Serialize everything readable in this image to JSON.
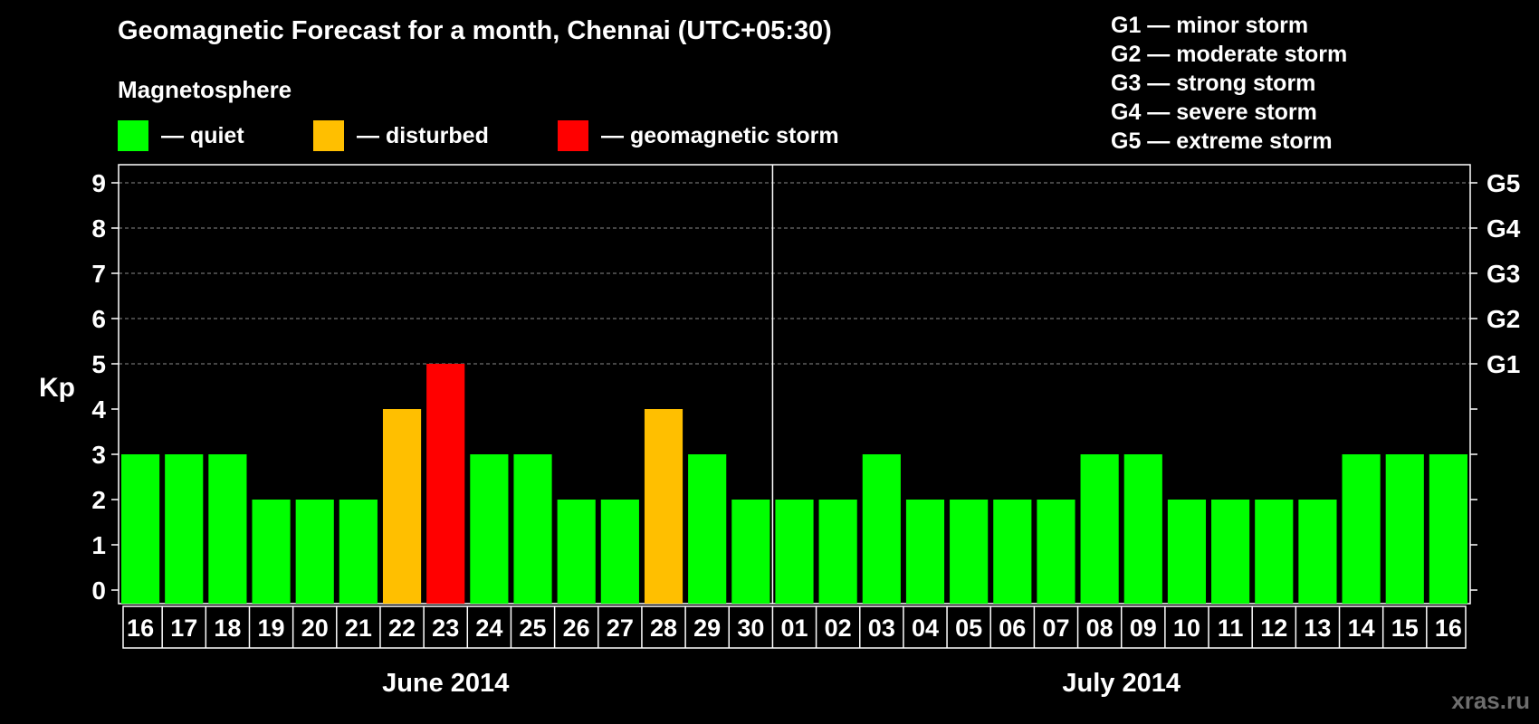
{
  "title": "Geomagnetic Forecast for a month, Chennai (UTC+05:30)",
  "legend": {
    "heading": "Magnetosphere",
    "items": [
      {
        "label": "— quiet",
        "color": "#00ff00"
      },
      {
        "label": "— disturbed",
        "color": "#ffbf00"
      },
      {
        "label": "— geomagnetic storm",
        "color": "#ff0000"
      }
    ]
  },
  "storm_scale": [
    "G1 — minor storm",
    "G2 — moderate storm",
    "G3 — strong storm",
    "G4 — severe storm",
    "G5 — extreme storm"
  ],
  "watermark": "xras.ru",
  "chart_data": {
    "type": "bar",
    "title": "Geomagnetic Forecast for a month, Chennai (UTC+05:30)",
    "ylabel": "Kp",
    "xlabel": "",
    "ylim": [
      0,
      9
    ],
    "yticks": [
      "0",
      "1",
      "2",
      "3",
      "4",
      "5",
      "6",
      "7",
      "8",
      "9"
    ],
    "right_axis_labels": [
      {
        "kp": 5,
        "label": "G1"
      },
      {
        "kp": 6,
        "label": "G2"
      },
      {
        "kp": 7,
        "label": "G3"
      },
      {
        "kp": 8,
        "label": "G4"
      },
      {
        "kp": 9,
        "label": "G5"
      }
    ],
    "gridlines_at": [
      5,
      6,
      7,
      8,
      9
    ],
    "categories": [
      "16",
      "17",
      "18",
      "19",
      "20",
      "21",
      "22",
      "23",
      "24",
      "25",
      "26",
      "27",
      "28",
      "29",
      "30",
      "01",
      "02",
      "03",
      "04",
      "05",
      "06",
      "07",
      "08",
      "09",
      "10",
      "11",
      "12",
      "13",
      "14",
      "15",
      "16"
    ],
    "values": [
      3,
      3,
      3,
      2,
      2,
      2,
      4,
      5,
      3,
      3,
      2,
      2,
      4,
      3,
      2,
      2,
      2,
      3,
      2,
      2,
      2,
      2,
      3,
      3,
      2,
      2,
      2,
      2,
      3,
      3,
      3
    ],
    "month_groups": [
      {
        "label": "June 2014",
        "start_index": 0,
        "count": 15
      },
      {
        "label": "July 2014",
        "start_index": 15,
        "count": 16
      }
    ],
    "color_rule": {
      "quiet": "#00ff00",
      "disturbed": "#ffbf00",
      "storm": "#ff0000"
    }
  }
}
